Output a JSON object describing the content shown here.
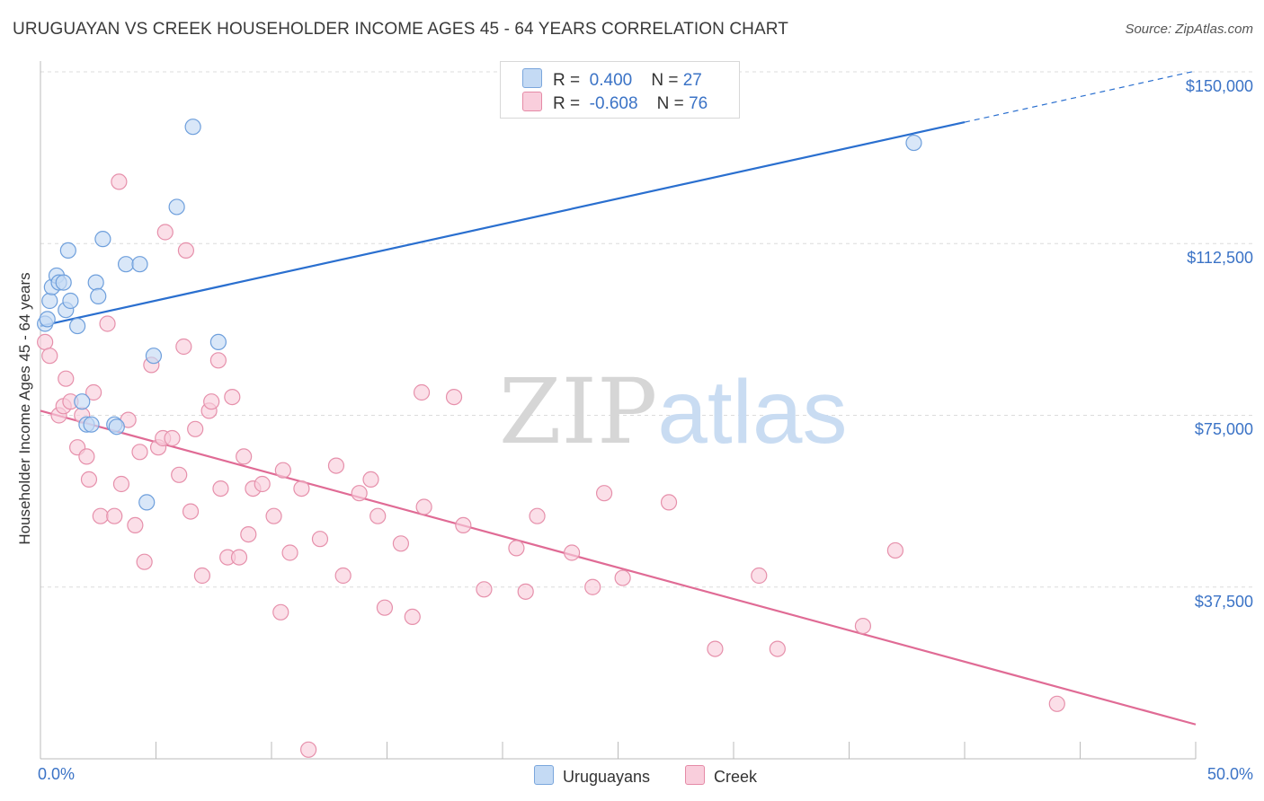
{
  "title": "URUGUAYAN VS CREEK HOUSEHOLDER INCOME AGES 45 - 64 YEARS CORRELATION CHART",
  "source": "Source: ZipAtlas.com",
  "watermark": {
    "zip": "ZIP",
    "atlas": "atlas"
  },
  "legend": {
    "rows": [
      {
        "r_label": "R =",
        "r_value": "0.400",
        "n_label": "N =",
        "n_value": "27",
        "color": "#aecbf0",
        "border": "#7aa6dc"
      },
      {
        "r_label": "R =",
        "r_value": "-0.608",
        "n_label": "N =",
        "n_value": "76",
        "color": "#f7c0d0",
        "border": "#e58aa6"
      }
    ]
  },
  "bottom_legend": {
    "uruguayans": "Uruguayans",
    "creek": "Creek"
  },
  "chart_data": {
    "type": "scatter",
    "title": "URUGUAYAN VS CREEK HOUSEHOLDER INCOME AGES 45 - 64 YEARS CORRELATION CHART",
    "xlabel": "",
    "ylabel": "Householder Income Ages 45 - 64 years",
    "xlim": [
      0,
      50
    ],
    "ylim": [
      0,
      155000
    ],
    "x_tick_labels": [
      "0.0%",
      "50.0%"
    ],
    "y_ticks": [
      37500,
      75000,
      112500,
      150000
    ],
    "y_tick_labels": [
      "$37,500",
      "$75,000",
      "$112,500",
      "$150,000"
    ],
    "grid": true,
    "legend_position": "top-center",
    "series": [
      {
        "name": "Uruguayans",
        "color": "#6e9fdc",
        "fill": "#c4daf4",
        "line_color": "#2a6fcf",
        "trend": {
          "x0": 0,
          "y0": 94500,
          "x1": 40,
          "y1": 139000,
          "dash_to_x": 50,
          "dash_to_y": 150200
        },
        "points": [
          [
            0.2,
            95000
          ],
          [
            0.4,
            100000
          ],
          [
            0.5,
            103000
          ],
          [
            0.7,
            105500
          ],
          [
            0.8,
            104000
          ],
          [
            1.0,
            104000
          ],
          [
            1.1,
            98000
          ],
          [
            1.3,
            100000
          ],
          [
            1.6,
            94500
          ],
          [
            1.2,
            111000
          ],
          [
            1.8,
            78000
          ],
          [
            2.0,
            73000
          ],
          [
            2.4,
            104000
          ],
          [
            2.5,
            101000
          ],
          [
            2.7,
            113500
          ],
          [
            3.2,
            73000
          ],
          [
            3.3,
            72500
          ],
          [
            3.7,
            108000
          ],
          [
            4.3,
            108000
          ],
          [
            4.6,
            56000
          ],
          [
            4.9,
            88000
          ],
          [
            5.9,
            120500
          ],
          [
            6.6,
            138000
          ],
          [
            7.7,
            91000
          ],
          [
            37.8,
            134500
          ],
          [
            0.3,
            96000
          ],
          [
            2.2,
            73000
          ]
        ]
      },
      {
        "name": "Creek",
        "color": "#e690ab",
        "fill": "#f9cedc",
        "line_color": "#e06b95",
        "trend": {
          "x0": 0,
          "y0": 76000,
          "x1": 50,
          "y1": 7500
        },
        "points": [
          [
            0.2,
            91000
          ],
          [
            0.4,
            88000
          ],
          [
            0.8,
            75000
          ],
          [
            1.0,
            77000
          ],
          [
            1.1,
            83000
          ],
          [
            1.3,
            78000
          ],
          [
            1.6,
            68000
          ],
          [
            1.8,
            75000
          ],
          [
            2.0,
            66000
          ],
          [
            2.1,
            61000
          ],
          [
            2.3,
            80000
          ],
          [
            2.6,
            53000
          ],
          [
            2.9,
            95000
          ],
          [
            3.2,
            53000
          ],
          [
            3.4,
            126000
          ],
          [
            3.5,
            60000
          ],
          [
            3.8,
            74000
          ],
          [
            4.1,
            51000
          ],
          [
            4.3,
            67000
          ],
          [
            4.5,
            43000
          ],
          [
            4.8,
            86000
          ],
          [
            5.1,
            68000
          ],
          [
            5.3,
            70000
          ],
          [
            5.4,
            115000
          ],
          [
            5.7,
            70000
          ],
          [
            6.0,
            62000
          ],
          [
            6.2,
            90000
          ],
          [
            6.3,
            111000
          ],
          [
            6.5,
            54000
          ],
          [
            6.7,
            72000
          ],
          [
            7.0,
            40000
          ],
          [
            7.3,
            76000
          ],
          [
            7.4,
            78000
          ],
          [
            7.7,
            87000
          ],
          [
            7.8,
            59000
          ],
          [
            8.1,
            44000
          ],
          [
            8.3,
            79000
          ],
          [
            8.6,
            44000
          ],
          [
            8.8,
            66000
          ],
          [
            9.0,
            49000
          ],
          [
            9.2,
            59000
          ],
          [
            9.6,
            60000
          ],
          [
            10.1,
            53000
          ],
          [
            10.4,
            32000
          ],
          [
            10.5,
            63000
          ],
          [
            10.8,
            45000
          ],
          [
            11.3,
            59000
          ],
          [
            11.6,
            2000
          ],
          [
            12.1,
            48000
          ],
          [
            12.8,
            64000
          ],
          [
            13.1,
            40000
          ],
          [
            13.8,
            58000
          ],
          [
            14.3,
            61000
          ],
          [
            14.6,
            53000
          ],
          [
            14.9,
            33000
          ],
          [
            15.6,
            47000
          ],
          [
            16.1,
            31000
          ],
          [
            16.5,
            80000
          ],
          [
            16.6,
            55000
          ],
          [
            17.9,
            79000
          ],
          [
            18.3,
            51000
          ],
          [
            19.2,
            37000
          ],
          [
            20.6,
            46000
          ],
          [
            21.0,
            36500
          ],
          [
            21.5,
            53000
          ],
          [
            23.0,
            45000
          ],
          [
            23.9,
            37500
          ],
          [
            24.4,
            58000
          ],
          [
            25.2,
            39500
          ],
          [
            27.2,
            56000
          ],
          [
            29.2,
            24000
          ],
          [
            31.1,
            40000
          ],
          [
            31.9,
            24000
          ],
          [
            35.6,
            29000
          ],
          [
            37.0,
            45500
          ],
          [
            44.0,
            12000
          ]
        ]
      }
    ]
  }
}
